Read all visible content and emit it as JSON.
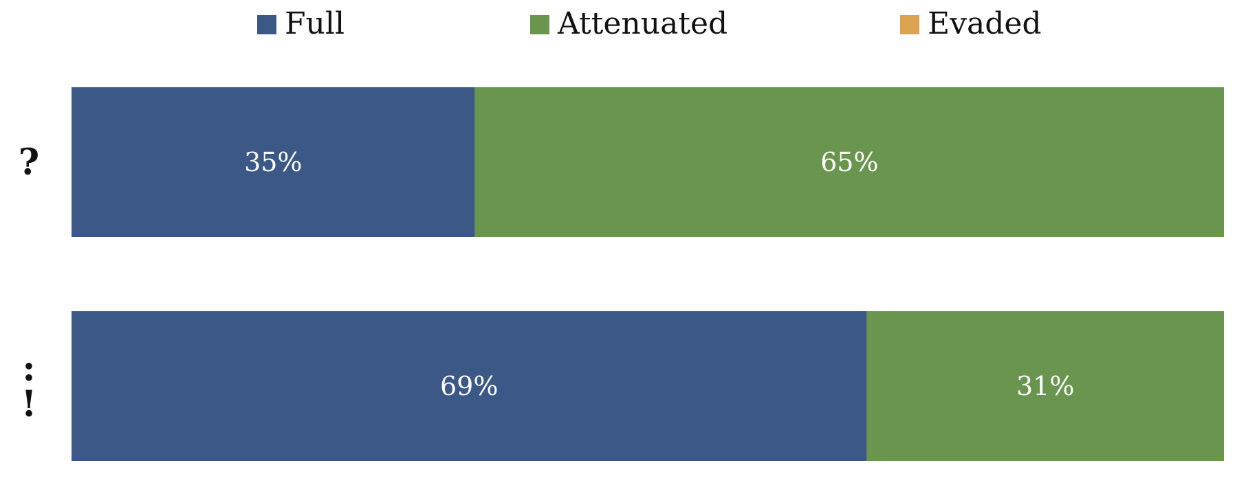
{
  "chart_data": {
    "type": "bar",
    "orientation": "horizontal",
    "stacked": true,
    "normalized": true,
    "categories": [
      "?",
      ":\n!"
    ],
    "series": [
      {
        "name": "Full",
        "color": "#3b5887",
        "values": [
          35,
          69
        ],
        "labels": [
          "35%",
          "69%"
        ]
      },
      {
        "name": "Attenuated",
        "color": "#6a954f",
        "values": [
          65,
          31
        ],
        "labels": [
          "65%",
          "31%"
        ]
      },
      {
        "name": "Evaded",
        "color": "#dba24f",
        "values": [
          0,
          0
        ],
        "labels": [
          "",
          ""
        ]
      }
    ],
    "xlim": [
      0,
      100
    ],
    "grid": false,
    "legend_position": "top"
  }
}
